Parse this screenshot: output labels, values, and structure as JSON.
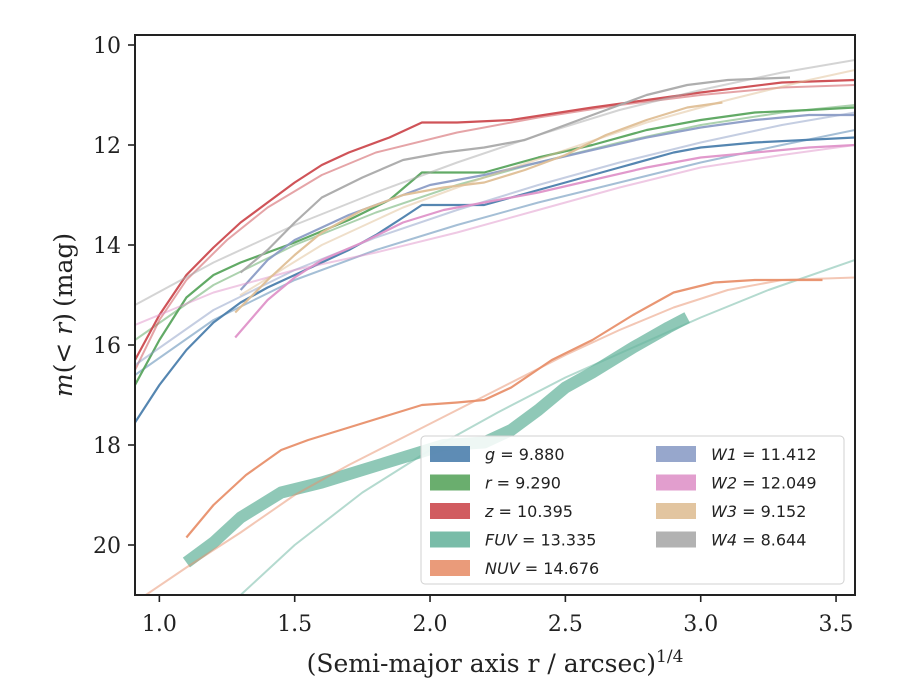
{
  "chart_data": {
    "type": "line",
    "title": "",
    "xlabel": "(Semi-major axis r / arcsec)",
    "xlabel_exponent": "1/4",
    "ylabel_m": "m",
    "ylabel_lt": "(< ",
    "ylabel_r": "r",
    "ylabel_close": ")",
    "ylabel_unit": "(mag)",
    "xlim": [
      0.91,
      3.57
    ],
    "ylim": [
      21.0,
      9.8
    ],
    "y_inverted": true,
    "xticks": [
      "1.0",
      "1.5",
      "2.0",
      "2.5",
      "3.0",
      "3.5"
    ],
    "yticks": [
      "10",
      "12",
      "14",
      "16",
      "18",
      "20"
    ],
    "grid": false,
    "legend_position": "lower-right",
    "series": [
      {
        "name": "g = 9.880",
        "band": "g",
        "sep": " = ",
        "value": "9.880",
        "color": "#4c7fad",
        "data": [
          [
            0.91,
            17.55
          ],
          [
            1.0,
            16.8
          ],
          [
            1.1,
            16.1
          ],
          [
            1.2,
            15.55
          ],
          [
            1.3,
            15.15
          ],
          [
            1.4,
            14.85
          ],
          [
            1.5,
            14.6
          ],
          [
            1.6,
            14.35
          ],
          [
            1.7,
            14.1
          ],
          [
            1.8,
            13.8
          ],
          [
            1.9,
            13.45
          ],
          [
            1.97,
            13.2
          ],
          [
            2.1,
            13.2
          ],
          [
            2.2,
            13.2
          ],
          [
            2.3,
            13.05
          ],
          [
            2.5,
            12.75
          ],
          [
            2.7,
            12.45
          ],
          [
            2.9,
            12.15
          ],
          [
            3.0,
            12.05
          ],
          [
            3.2,
            11.95
          ],
          [
            3.57,
            11.85
          ]
        ],
        "fit": [
          [
            0.91,
            16.6
          ],
          [
            1.2,
            15.5
          ],
          [
            1.5,
            14.7
          ],
          [
            1.8,
            14.1
          ],
          [
            2.1,
            13.6
          ],
          [
            2.4,
            13.15
          ],
          [
            2.7,
            12.75
          ],
          [
            3.0,
            12.35
          ],
          [
            3.3,
            12.0
          ],
          [
            3.57,
            11.7
          ]
        ],
        "band_width": 0
      },
      {
        "name": "r = 9.290",
        "band": "r",
        "sep": " = ",
        "value": "9.290",
        "color": "#5aa55e",
        "data": [
          [
            0.91,
            16.8
          ],
          [
            1.0,
            15.9
          ],
          [
            1.1,
            15.05
          ],
          [
            1.2,
            14.6
          ],
          [
            1.3,
            14.35
          ],
          [
            1.5,
            13.95
          ],
          [
            1.7,
            13.5
          ],
          [
            1.85,
            13.1
          ],
          [
            1.97,
            12.55
          ],
          [
            2.1,
            12.55
          ],
          [
            2.2,
            12.55
          ],
          [
            2.4,
            12.25
          ],
          [
            2.6,
            12.0
          ],
          [
            2.8,
            11.7
          ],
          [
            3.0,
            11.5
          ],
          [
            3.2,
            11.35
          ],
          [
            3.4,
            11.3
          ],
          [
            3.57,
            11.25
          ]
        ],
        "fit": [
          [
            0.91,
            15.9
          ],
          [
            1.2,
            14.8
          ],
          [
            1.5,
            14.0
          ],
          [
            1.8,
            13.35
          ],
          [
            2.1,
            12.8
          ],
          [
            2.4,
            12.35
          ],
          [
            2.7,
            11.95
          ],
          [
            3.0,
            11.6
          ],
          [
            3.3,
            11.35
          ],
          [
            3.57,
            11.2
          ]
        ],
        "band_width": 0
      },
      {
        "name": "z = 10.395",
        "band": "z",
        "sep": " = ",
        "value": "10.395",
        "color": "#cc4a4f",
        "data": [
          [
            0.91,
            16.3
          ],
          [
            1.0,
            15.4
          ],
          [
            1.1,
            14.6
          ],
          [
            1.2,
            14.05
          ],
          [
            1.3,
            13.55
          ],
          [
            1.4,
            13.15
          ],
          [
            1.5,
            12.75
          ],
          [
            1.6,
            12.4
          ],
          [
            1.7,
            12.15
          ],
          [
            1.85,
            11.85
          ],
          [
            1.97,
            11.55
          ],
          [
            2.1,
            11.55
          ],
          [
            2.3,
            11.5
          ],
          [
            2.6,
            11.25
          ],
          [
            3.0,
            10.95
          ],
          [
            3.3,
            10.75
          ],
          [
            3.57,
            10.7
          ]
        ],
        "fit": [
          [
            0.91,
            16.5
          ],
          [
            1.0,
            15.5
          ],
          [
            1.1,
            14.7
          ],
          [
            1.25,
            13.9
          ],
          [
            1.4,
            13.25
          ],
          [
            1.6,
            12.6
          ],
          [
            1.8,
            12.15
          ],
          [
            2.1,
            11.75
          ],
          [
            2.4,
            11.45
          ],
          [
            2.7,
            11.2
          ],
          [
            3.0,
            11.0
          ],
          [
            3.3,
            10.85
          ],
          [
            3.57,
            10.8
          ]
        ],
        "band_width": 0
      },
      {
        "name": "FUV = 13.335",
        "band": "FUV",
        "sep": " = ",
        "value": "13.335",
        "color": "#6ab59f",
        "data": [
          [
            1.1,
            20.35
          ],
          [
            1.2,
            19.95
          ],
          [
            1.3,
            19.45
          ],
          [
            1.45,
            18.95
          ],
          [
            1.6,
            18.75
          ],
          [
            1.75,
            18.5
          ],
          [
            1.9,
            18.25
          ],
          [
            2.05,
            18.0
          ],
          [
            2.2,
            17.95
          ],
          [
            2.3,
            17.7
          ],
          [
            2.4,
            17.3
          ],
          [
            2.5,
            16.85
          ],
          [
            2.6,
            16.55
          ],
          [
            2.75,
            16.05
          ],
          [
            2.88,
            15.65
          ],
          [
            2.95,
            15.45
          ]
        ],
        "fit": [
          [
            1.3,
            21.0
          ],
          [
            1.5,
            20.0
          ],
          [
            1.75,
            18.95
          ],
          [
            2.0,
            18.1
          ],
          [
            2.25,
            17.35
          ],
          [
            2.5,
            16.65
          ],
          [
            2.75,
            16.05
          ],
          [
            3.0,
            15.45
          ],
          [
            3.25,
            14.9
          ],
          [
            3.57,
            14.3
          ]
        ],
        "band_width": 12
      },
      {
        "name": "NUV = 14.676",
        "band": "NUV",
        "sep": " = ",
        "value": "14.676",
        "color": "#e8906b",
        "data": [
          [
            1.1,
            19.85
          ],
          [
            1.2,
            19.2
          ],
          [
            1.32,
            18.6
          ],
          [
            1.45,
            18.1
          ],
          [
            1.55,
            17.9
          ],
          [
            1.7,
            17.65
          ],
          [
            1.85,
            17.4
          ],
          [
            1.97,
            17.2
          ],
          [
            2.1,
            17.15
          ],
          [
            2.2,
            17.1
          ],
          [
            2.3,
            16.85
          ],
          [
            2.45,
            16.3
          ],
          [
            2.6,
            15.9
          ],
          [
            2.75,
            15.4
          ],
          [
            2.9,
            14.95
          ],
          [
            3.05,
            14.75
          ],
          [
            3.2,
            14.7
          ],
          [
            3.45,
            14.7
          ]
        ],
        "fit": [
          [
            0.95,
            21.0
          ],
          [
            1.1,
            20.45
          ],
          [
            1.3,
            19.75
          ],
          [
            1.5,
            19.0
          ],
          [
            1.7,
            18.4
          ],
          [
            1.9,
            17.85
          ],
          [
            2.1,
            17.3
          ],
          [
            2.3,
            16.75
          ],
          [
            2.5,
            16.2
          ],
          [
            2.7,
            15.7
          ],
          [
            2.9,
            15.25
          ],
          [
            3.1,
            14.9
          ],
          [
            3.3,
            14.7
          ],
          [
            3.57,
            14.65
          ]
        ],
        "band_width": 0
      },
      {
        "name": "W1 = 11.412",
        "band": "W1",
        "sep": " = ",
        "value": "11.412",
        "color": "#8c9dc6",
        "data": [
          [
            1.3,
            14.9
          ],
          [
            1.4,
            14.3
          ],
          [
            1.5,
            13.9
          ],
          [
            1.6,
            13.65
          ],
          [
            1.7,
            13.4
          ],
          [
            1.85,
            13.1
          ],
          [
            2.0,
            12.8
          ],
          [
            2.2,
            12.6
          ],
          [
            2.4,
            12.35
          ],
          [
            2.6,
            12.1
          ],
          [
            2.8,
            11.85
          ],
          [
            3.0,
            11.65
          ],
          [
            3.2,
            11.5
          ],
          [
            3.4,
            11.4
          ],
          [
            3.57,
            11.4
          ]
        ],
        "fit": [
          [
            0.91,
            16.4
          ],
          [
            1.2,
            15.3
          ],
          [
            1.5,
            14.5
          ],
          [
            1.8,
            13.85
          ],
          [
            2.1,
            13.3
          ],
          [
            2.4,
            12.8
          ],
          [
            2.7,
            12.35
          ],
          [
            3.0,
            11.95
          ],
          [
            3.3,
            11.6
          ],
          [
            3.57,
            11.35
          ]
        ],
        "band_width": 0
      },
      {
        "name": "W2 = 12.049",
        "band": "W2",
        "sep": " = ",
        "value": "12.049",
        "color": "#df93c9",
        "data": [
          [
            1.28,
            15.85
          ],
          [
            1.4,
            15.1
          ],
          [
            1.5,
            14.65
          ],
          [
            1.6,
            14.3
          ],
          [
            1.75,
            13.95
          ],
          [
            1.9,
            13.55
          ],
          [
            2.05,
            13.3
          ],
          [
            2.2,
            13.15
          ],
          [
            2.4,
            12.95
          ],
          [
            2.6,
            12.7
          ],
          [
            2.8,
            12.45
          ],
          [
            3.0,
            12.25
          ],
          [
            3.2,
            12.15
          ],
          [
            3.4,
            12.05
          ],
          [
            3.57,
            12.0
          ]
        ],
        "fit": [
          [
            0.91,
            15.6
          ],
          [
            1.2,
            14.95
          ],
          [
            1.5,
            14.5
          ],
          [
            1.8,
            14.15
          ],
          [
            2.1,
            13.75
          ],
          [
            2.4,
            13.3
          ],
          [
            2.7,
            12.85
          ],
          [
            3.0,
            12.45
          ],
          [
            3.3,
            12.2
          ],
          [
            3.57,
            12.0
          ]
        ],
        "band_width": 0
      },
      {
        "name": "W3 = 9.152",
        "band": "W3",
        "sep": " = ",
        "value": "9.152",
        "color": "#dfbf96",
        "data": [
          [
            1.28,
            15.35
          ],
          [
            1.4,
            14.7
          ],
          [
            1.5,
            14.2
          ],
          [
            1.6,
            13.75
          ],
          [
            1.75,
            13.3
          ],
          [
            1.9,
            13.0
          ],
          [
            2.05,
            12.85
          ],
          [
            2.2,
            12.75
          ],
          [
            2.35,
            12.5
          ],
          [
            2.5,
            12.2
          ],
          [
            2.65,
            11.8
          ],
          [
            2.8,
            11.5
          ],
          [
            2.95,
            11.25
          ],
          [
            3.08,
            11.15
          ]
        ],
        "fit": [
          [
            1.3,
            15.0
          ],
          [
            1.6,
            14.0
          ],
          [
            1.9,
            13.25
          ],
          [
            2.2,
            12.65
          ],
          [
            2.5,
            12.1
          ],
          [
            2.8,
            11.55
          ],
          [
            3.1,
            11.1
          ],
          [
            3.4,
            10.7
          ],
          [
            3.57,
            10.5
          ]
        ],
        "band_width": 0
      },
      {
        "name": "W4 = 8.644",
        "band": "W4",
        "sep": " = ",
        "value": "8.644",
        "color": "#aaaaaa",
        "data": [
          [
            1.3,
            14.55
          ],
          [
            1.4,
            14.1
          ],
          [
            1.5,
            13.55
          ],
          [
            1.6,
            13.05
          ],
          [
            1.75,
            12.65
          ],
          [
            1.9,
            12.3
          ],
          [
            2.05,
            12.15
          ],
          [
            2.2,
            12.05
          ],
          [
            2.35,
            11.9
          ],
          [
            2.5,
            11.6
          ],
          [
            2.65,
            11.3
          ],
          [
            2.8,
            11.0
          ],
          [
            2.95,
            10.8
          ],
          [
            3.1,
            10.7
          ],
          [
            3.33,
            10.65
          ]
        ],
        "fit": [
          [
            0.91,
            15.2
          ],
          [
            1.2,
            14.35
          ],
          [
            1.5,
            13.6
          ],
          [
            1.8,
            12.95
          ],
          [
            2.1,
            12.35
          ],
          [
            2.4,
            11.8
          ],
          [
            2.7,
            11.3
          ],
          [
            3.0,
            10.9
          ],
          [
            3.3,
            10.55
          ],
          [
            3.57,
            10.3
          ]
        ],
        "band_width": 0
      }
    ]
  }
}
